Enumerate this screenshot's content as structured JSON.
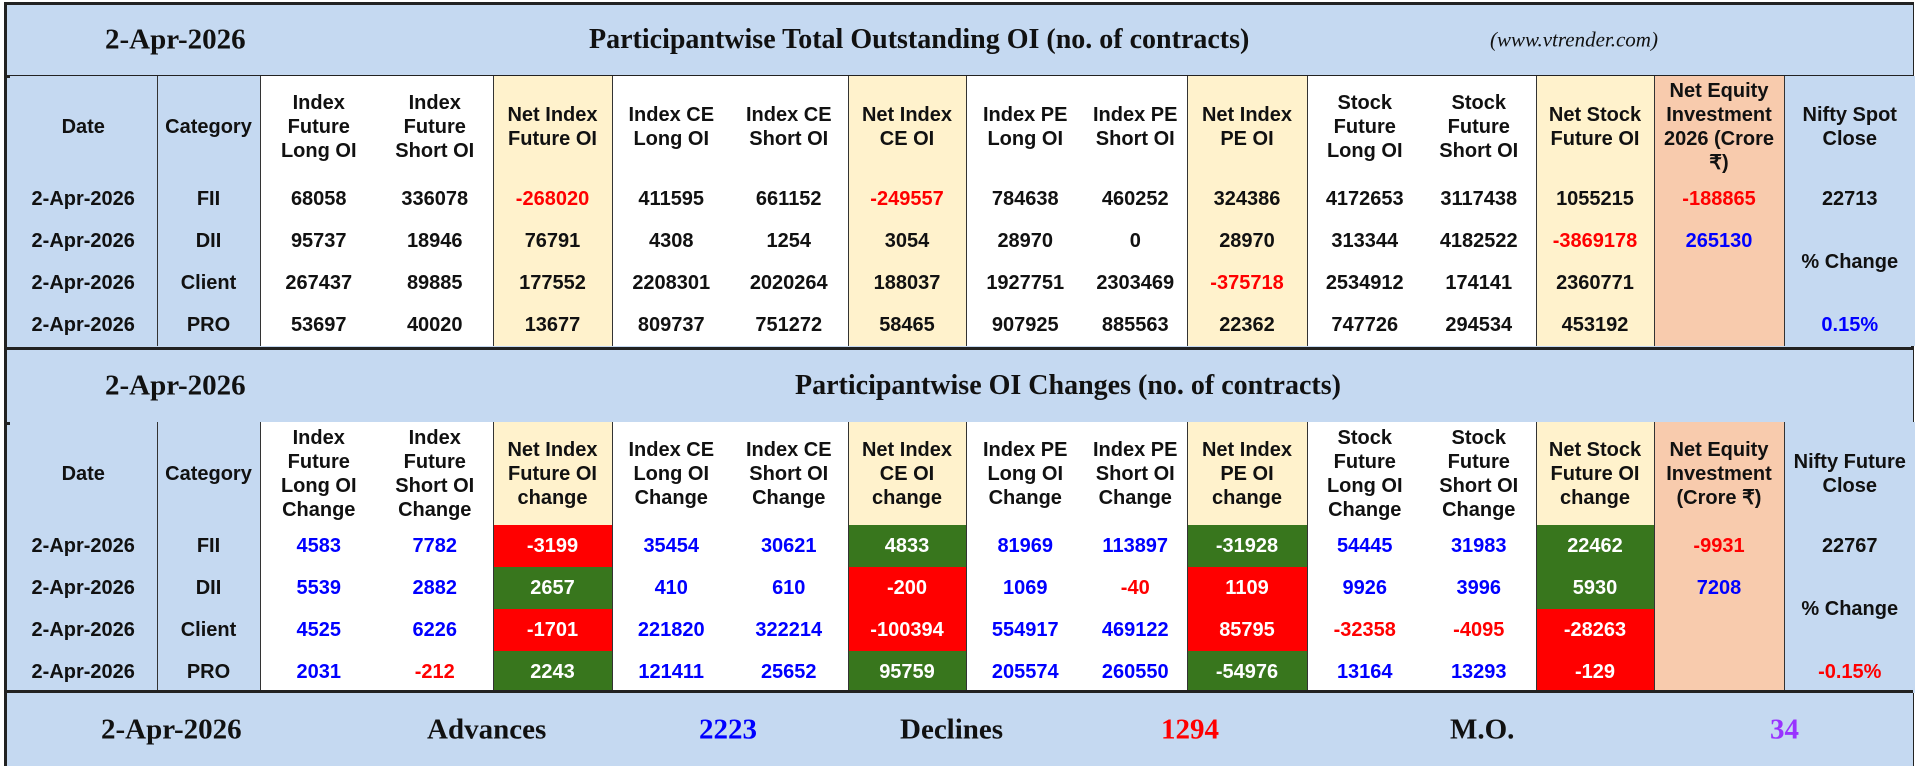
{
  "colors": {
    "header_bg": "#c5d9f1",
    "net_bg": "#fff2cc",
    "equity_bg": "#f8cbad",
    "positive_text": "#0000ff",
    "negative_text": "#ff0000",
    "green_cell": "#38761d",
    "red_cell": "#ff0000",
    "mo_text": "#9933ff"
  },
  "oi_section": {
    "date": "2-Apr-2026",
    "title": "Participantwise Total Outstanding OI (no. of contracts)",
    "site": "(www.vtrender.com)",
    "headers": [
      "Date",
      "Category",
      "Index Future Long OI",
      "Index Future Short OI",
      "Net Index Future OI",
      "Index CE Long OI",
      "Index CE Short OI",
      "Net Index CE OI",
      "Index PE Long OI",
      "Index PE Short OI",
      "Net Index PE OI",
      "Stock Future Long OI",
      "Stock Future Short OI",
      "Net Stock Future OI",
      "Net Equity Investment 2026 (Crore ₹)",
      "Nifty Spot Close"
    ],
    "rows": [
      {
        "date": "2-Apr-2026",
        "category": "FII",
        "values": [
          "68058",
          "336078",
          "-268020",
          "411595",
          "661152",
          "-249557",
          "784638",
          "460252",
          "324386",
          "4172653",
          "3117438",
          "1055215"
        ]
      },
      {
        "date": "2-Apr-2026",
        "category": "DII",
        "values": [
          "95737",
          "18946",
          "76791",
          "4308",
          "1254",
          "3054",
          "28970",
          "0",
          "28970",
          "313344",
          "4182522",
          "-3869178"
        ]
      },
      {
        "date": "2-Apr-2026",
        "category": "Client",
        "values": [
          "267437",
          "89885",
          "177552",
          "2208301",
          "2020264",
          "188037",
          "1927751",
          "2303469",
          "-375718",
          "2534912",
          "174141",
          "2360771"
        ]
      },
      {
        "date": "2-Apr-2026",
        "category": "PRO",
        "values": [
          "53697",
          "40020",
          "13677",
          "809737",
          "751272",
          "58465",
          "907925",
          "885563",
          "22362",
          "747726",
          "294534",
          "453192"
        ]
      }
    ],
    "net_equity": [
      "-188865",
      "265130"
    ],
    "nifty_close": "22713",
    "pct_change_label": "% Change",
    "pct_change": "0.15%"
  },
  "change_section": {
    "date": "2-Apr-2026",
    "title": "Participantwise OI Changes (no. of contracts)",
    "headers": [
      "Date",
      "Category",
      "Index Future Long OI Change",
      "Index Future Short OI Change",
      "Net Index Future OI change",
      "Index CE Long OI Change",
      "Index CE Short OI Change",
      "Net Index CE OI change",
      "Index PE Long OI Change",
      "Index PE Short OI Change",
      "Net Index PE OI change",
      "Stock Future Long OI Change",
      "Stock Future Short OI Change",
      "Net Stock Future OI change",
      "Net Equity Investment (Crore ₹)",
      "Nifty Future Close"
    ],
    "rows": [
      {
        "date": "2-Apr-2026",
        "category": "FII",
        "values": [
          "4583",
          "7782",
          "-3199",
          "35454",
          "30621",
          "4833",
          "81969",
          "113897",
          "-31928",
          "54445",
          "31983",
          "22462"
        ],
        "net_signal": [
          "red",
          "green",
          "green",
          "green"
        ]
      },
      {
        "date": "2-Apr-2026",
        "category": "DII",
        "values": [
          "5539",
          "2882",
          "2657",
          "410",
          "610",
          "-200",
          "1069",
          "-40",
          "1109",
          "9926",
          "3996",
          "5930"
        ],
        "net_signal": [
          "green",
          "red",
          "red",
          "green"
        ]
      },
      {
        "date": "2-Apr-2026",
        "category": "Client",
        "values": [
          "4525",
          "6226",
          "-1701",
          "221820",
          "322214",
          "-100394",
          "554917",
          "469122",
          "85795",
          "-32358",
          "-4095",
          "-28263"
        ],
        "net_signal": [
          "red",
          "red",
          "red",
          "red"
        ]
      },
      {
        "date": "2-Apr-2026",
        "category": "PRO",
        "values": [
          "2031",
          "-212",
          "2243",
          "121411",
          "25652",
          "95759",
          "205574",
          "260550",
          "-54976",
          "13164",
          "13293",
          "-129"
        ],
        "net_signal": [
          "green",
          "green",
          "green",
          "red"
        ]
      }
    ],
    "net_equity": [
      "-9931",
      "7208"
    ],
    "nifty_close": "22767",
    "pct_change_label": "% Change",
    "pct_change": "-0.15%"
  },
  "breadth": {
    "date": "2-Apr-2026",
    "advances_label": "Advances",
    "advances": "2223",
    "declines_label": "Declines",
    "declines": "1294",
    "mo_label": "M.O.",
    "mo": "34"
  }
}
